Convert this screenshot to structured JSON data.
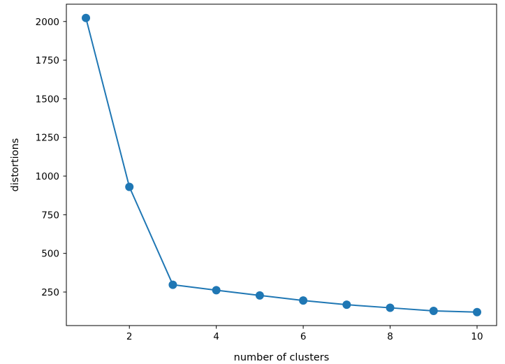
{
  "chart_data": {
    "type": "line",
    "title": "",
    "xlabel": "number of clusters",
    "ylabel": "distortions",
    "x": [
      1,
      2,
      3,
      4,
      5,
      6,
      7,
      8,
      9,
      10
    ],
    "series": [
      {
        "values": [
          2023,
          930,
          297,
          262,
          228,
          195,
          168,
          148,
          128,
          120
        ],
        "color": "#1f77b4",
        "marker": "circle"
      }
    ],
    "xlim": [
      0.55,
      10.45
    ],
    "ylim": [
      33,
      2112
    ],
    "xticks": [
      2,
      4,
      6,
      8,
      10
    ],
    "yticks": [
      250,
      500,
      750,
      1000,
      1250,
      1500,
      1750,
      2000
    ],
    "grid": false,
    "legend": "none"
  }
}
